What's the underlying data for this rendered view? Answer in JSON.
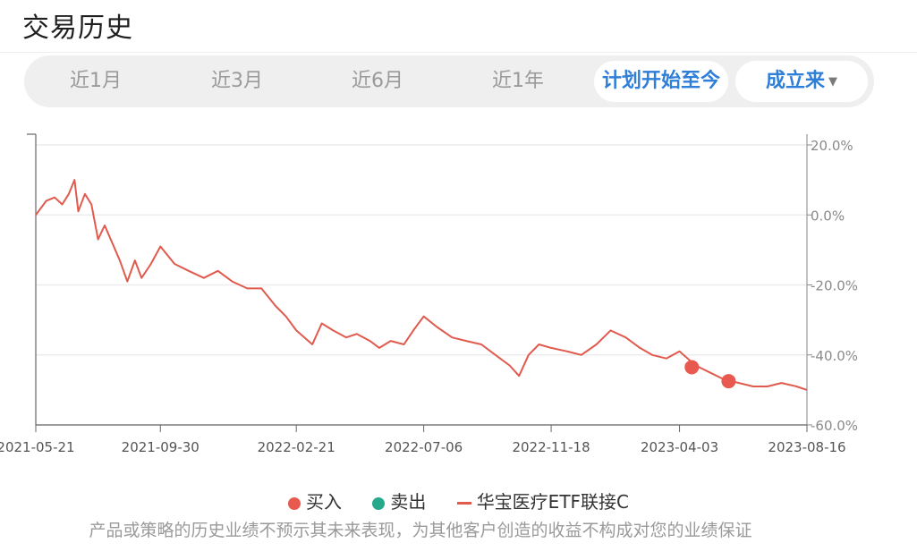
{
  "page": {
    "title": "交易历史"
  },
  "tabs": [
    {
      "label": "近1月",
      "active": false
    },
    {
      "label": "近3月",
      "active": false
    },
    {
      "label": "近6月",
      "active": false
    },
    {
      "label": "近1年",
      "active": false
    },
    {
      "label": "计划开始至今",
      "active": true
    }
  ],
  "range_dropdown": {
    "label": "成立来"
  },
  "colors": {
    "accent": "#2f7fd8",
    "series": "#e05a4e",
    "buy": "#e85a4f",
    "sell": "#26a88c"
  },
  "chart_data": {
    "type": "line",
    "x_tick_labels": [
      "2021-05-21",
      "2021-09-30",
      "2022-02-21",
      "2022-07-06",
      "2022-11-18",
      "2023-04-03",
      "2023-08-16"
    ],
    "y_tick_labels": [
      "20.0%",
      "0.0%",
      "-20.0%",
      "-40.0%",
      "-60.0%"
    ],
    "ylim": [
      -60,
      20
    ],
    "xlim": [
      "2021-05-21",
      "2023-08-16"
    ],
    "grid": true,
    "legend_position": "bottom",
    "series": [
      {
        "name": "华宝医疗ETF联接C",
        "points": [
          [
            "2021-05-21",
            0
          ],
          [
            "2021-06-01",
            4
          ],
          [
            "2021-06-10",
            5
          ],
          [
            "2021-06-18",
            3
          ],
          [
            "2021-06-25",
            6
          ],
          [
            "2021-07-01",
            10
          ],
          [
            "2021-07-05",
            1
          ],
          [
            "2021-07-12",
            6
          ],
          [
            "2021-07-19",
            3
          ],
          [
            "2021-07-26",
            -7
          ],
          [
            "2021-08-02",
            -3
          ],
          [
            "2021-08-10",
            -8
          ],
          [
            "2021-08-18",
            -13
          ],
          [
            "2021-08-26",
            -19
          ],
          [
            "2021-09-03",
            -13
          ],
          [
            "2021-09-10",
            -18
          ],
          [
            "2021-09-20",
            -14
          ],
          [
            "2021-09-30",
            -9
          ],
          [
            "2021-10-15",
            -14
          ],
          [
            "2021-10-30",
            -16
          ],
          [
            "2021-11-15",
            -18
          ],
          [
            "2021-11-30",
            -16
          ],
          [
            "2021-12-15",
            -19
          ],
          [
            "2021-12-31",
            -21
          ],
          [
            "2022-01-15",
            -21
          ],
          [
            "2022-01-30",
            -26
          ],
          [
            "2022-02-10",
            -29
          ],
          [
            "2022-02-21",
            -33
          ],
          [
            "2022-03-10",
            -37
          ],
          [
            "2022-03-20",
            -31
          ],
          [
            "2022-04-01",
            -33
          ],
          [
            "2022-04-15",
            -35
          ],
          [
            "2022-04-26",
            -34
          ],
          [
            "2022-05-10",
            -36
          ],
          [
            "2022-05-20",
            -38
          ],
          [
            "2022-06-01",
            -36
          ],
          [
            "2022-06-15",
            -37
          ],
          [
            "2022-06-25",
            -33
          ],
          [
            "2022-07-06",
            -29
          ],
          [
            "2022-07-20",
            -32
          ],
          [
            "2022-08-05",
            -35
          ],
          [
            "2022-08-20",
            -36
          ],
          [
            "2022-09-05",
            -37
          ],
          [
            "2022-09-20",
            -40
          ],
          [
            "2022-10-05",
            -43
          ],
          [
            "2022-10-15",
            -46
          ],
          [
            "2022-10-25",
            -40
          ],
          [
            "2022-11-05",
            -37
          ],
          [
            "2022-11-18",
            -38
          ],
          [
            "2022-12-05",
            -39
          ],
          [
            "2022-12-20",
            -40
          ],
          [
            "2023-01-05",
            -37
          ],
          [
            "2023-01-20",
            -33
          ],
          [
            "2023-02-05",
            -35
          ],
          [
            "2023-02-20",
            -38
          ],
          [
            "2023-03-05",
            -40
          ],
          [
            "2023-03-20",
            -41
          ],
          [
            "2023-04-03",
            -39
          ],
          [
            "2023-04-20",
            -43
          ],
          [
            "2023-05-05",
            -45
          ],
          [
            "2023-05-20",
            -47
          ],
          [
            "2023-06-05",
            -48
          ],
          [
            "2023-06-20",
            -49
          ],
          [
            "2023-07-05",
            -49
          ],
          [
            "2023-07-20",
            -48
          ],
          [
            "2023-08-05",
            -49
          ],
          [
            "2023-08-16",
            -50
          ]
        ]
      }
    ],
    "markers": [
      {
        "type": "买入",
        "x": "2023-04-16",
        "y": -43.5
      },
      {
        "type": "买入",
        "x": "2023-05-25",
        "y": -47.5
      }
    ]
  },
  "legend": {
    "buy": "买入",
    "sell": "卖出",
    "series": "华宝医疗ETF联接C"
  },
  "disclaimer": "产品或策略的历史业绩不预示其未来表现，为其他客户创造的收益不构成对您的业绩保证"
}
